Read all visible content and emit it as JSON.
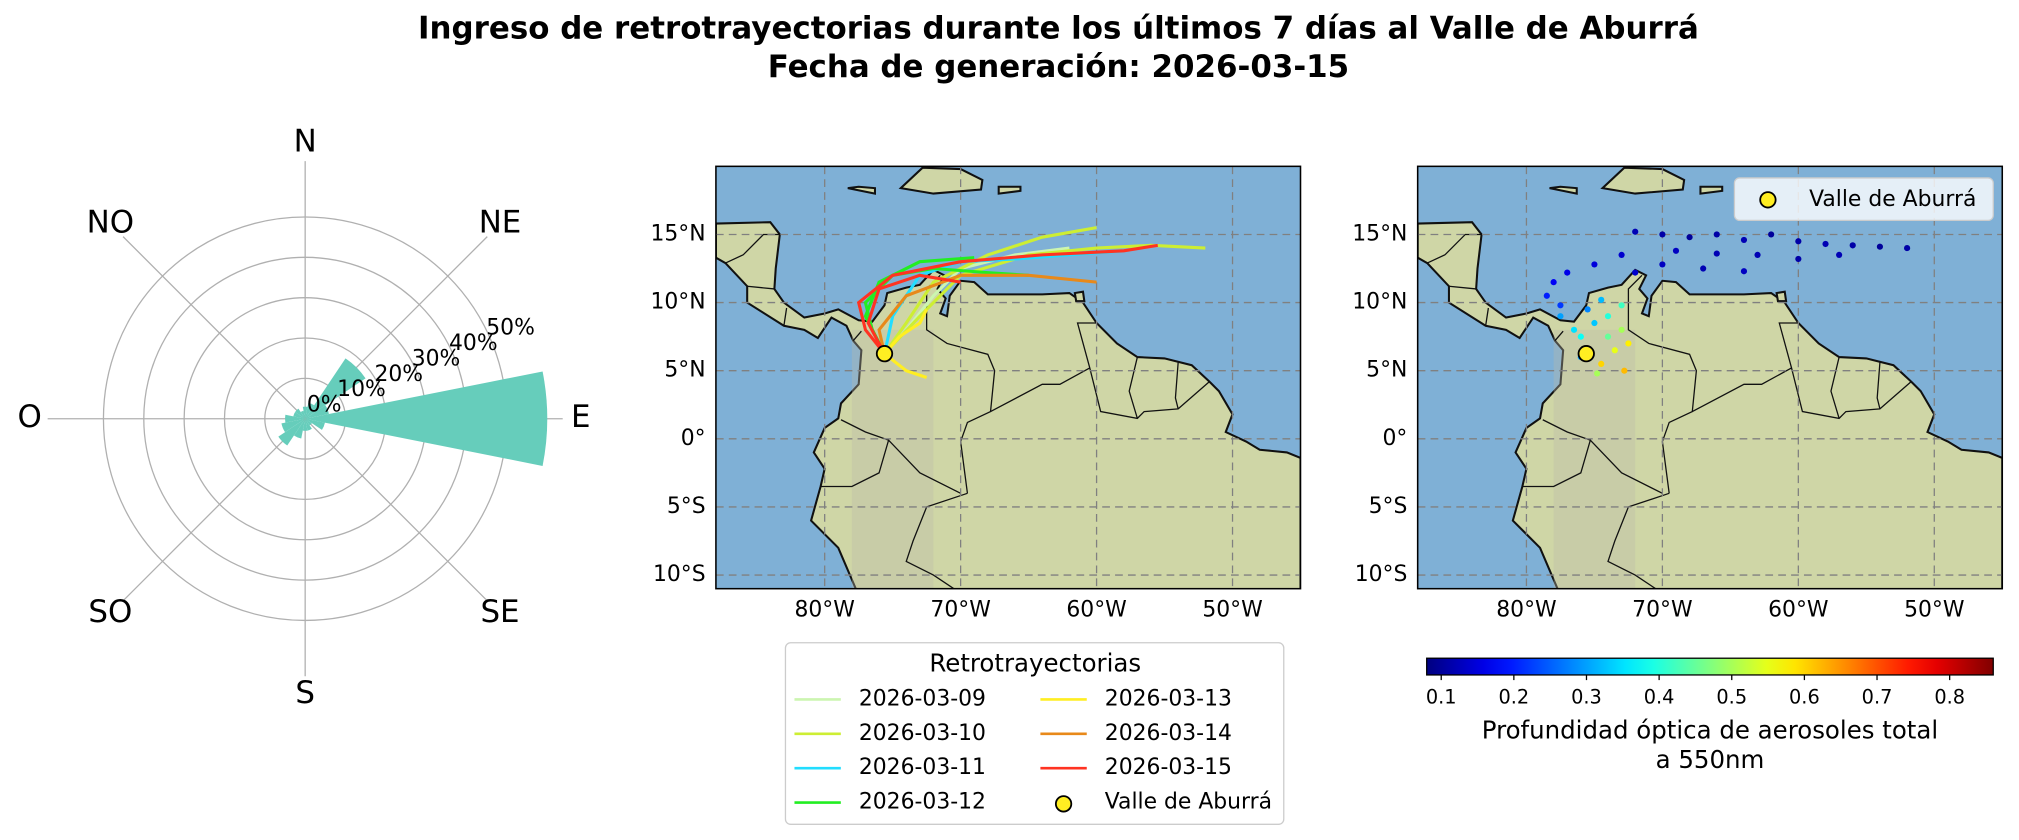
{
  "title": "Ingreso de retrotrayectorias durante los últimos 7 días al Valle de Aburrá",
  "subtitle": "Fecha de generación: 2026-03-15",
  "chart_data": [
    {
      "type": "rose",
      "directions": [
        "N",
        "NE",
        "E",
        "SE",
        "S",
        "SO",
        "O",
        "NO"
      ],
      "x": [
        0,
        22.5,
        45,
        67.5,
        90,
        112.5,
        135,
        157.5,
        180,
        202.5,
        225,
        247.5,
        270,
        292.5,
        315,
        337.5
      ],
      "values": [
        3,
        4,
        18,
        6,
        60,
        5,
        2,
        3,
        3,
        5,
        8,
        6,
        5,
        3,
        3,
        2
      ],
      "color": "#66cdbb",
      "rlim": [
        0,
        60
      ],
      "rticks": [
        {
          "value": 0,
          "label": "0%"
        },
        {
          "value": 10,
          "label": "10%"
        },
        {
          "value": 20,
          "label": "20%"
        },
        {
          "value": 30,
          "label": "30%"
        },
        {
          "value": 40,
          "label": "40%"
        },
        {
          "value": 50,
          "label": "50%"
        }
      ],
      "grid": true
    },
    {
      "type": "trajectory_map",
      "xlim": [
        -88,
        -45
      ],
      "ylim": [
        -11,
        20
      ],
      "xticks": [
        {
          "value": -80,
          "label": "80°W"
        },
        {
          "value": -70,
          "label": "70°W"
        },
        {
          "value": -60,
          "label": "60°W"
        },
        {
          "value": -50,
          "label": "50°W"
        }
      ],
      "yticks": [
        {
          "value": 15,
          "label": "15°N"
        },
        {
          "value": 10,
          "label": "10°N"
        },
        {
          "value": 5,
          "label": "5°N"
        },
        {
          "value": 0,
          "label": "0°"
        },
        {
          "value": -5,
          "label": "5°S"
        },
        {
          "value": -10,
          "label": "10°S"
        }
      ],
      "grid": true,
      "legend": {
        "title": "Retrotrayectorias",
        "loc": "lower center"
      },
      "series": [
        {
          "name": "2026-03-09",
          "color": "#ccf5b0",
          "lines": [
            {
              "lon": [
                -75.6,
                -74,
                -72,
                -70,
                -66,
                -62
              ],
              "lat": [
                6.25,
                8,
                10.5,
                12.5,
                13.5,
                14
              ]
            }
          ]
        },
        {
          "name": "2026-03-10",
          "color": "#cdee33",
          "lines": [
            {
              "lon": [
                -75.6,
                -74,
                -72,
                -68,
                -64,
                -60
              ],
              "lat": [
                6.25,
                8.5,
                11.5,
                13.5,
                14.8,
                15.5
              ]
            },
            {
              "lon": [
                -75.6,
                -73,
                -70,
                -65,
                -60,
                -56,
                -52
              ],
              "lat": [
                6.25,
                9,
                12,
                13.5,
                14,
                14.2,
                14
              ]
            }
          ]
        },
        {
          "name": "2026-03-11",
          "color": "#22ddff",
          "lines": [
            {
              "lon": [
                -75.6,
                -75,
                -73,
                -70,
                -66,
                -62,
                -58
              ],
              "lat": [
                6.25,
                9,
                12,
                13,
                13.2,
                13.5,
                13.8
              ]
            }
          ]
        },
        {
          "name": "2026-03-12",
          "color": "#22ee22",
          "lines": [
            {
              "lon": [
                -75.6,
                -76.5,
                -77,
                -75,
                -72,
                -68,
                -65
              ],
              "lat": [
                6.25,
                8,
                10,
                12,
                12.5,
                12.2,
                12
              ]
            },
            {
              "lon": [
                -75.6,
                -77,
                -76,
                -73,
                -69
              ],
              "lat": [
                6.25,
                9,
                11.5,
                13,
                13.3
              ]
            }
          ]
        },
        {
          "name": "2026-03-13",
          "color": "#ffee22",
          "lines": [
            {
              "lon": [
                -75.6,
                -74.5,
                -73,
                -72.5
              ],
              "lat": [
                6.25,
                7.5,
                8.5,
                9.5
              ]
            },
            {
              "lon": [
                -75.6,
                -74,
                -72.5
              ],
              "lat": [
                6.25,
                5,
                4.5
              ]
            }
          ]
        },
        {
          "name": "2026-03-14",
          "color": "#e8891a",
          "lines": [
            {
              "lon": [
                -75.6,
                -76,
                -74,
                -70,
                -65,
                -60
              ],
              "lat": [
                6.25,
                8,
                10.5,
                12,
                12,
                11.5
              ]
            }
          ]
        },
        {
          "name": "2026-03-15",
          "color": "#ff3322",
          "lines": [
            {
              "lon": [
                -75.6,
                -77,
                -77.5,
                -75,
                -70,
                -64,
                -58,
                -55.5
              ],
              "lat": [
                6.25,
                8,
                10,
                12,
                13,
                13.5,
                13.8,
                14.2
              ]
            },
            {
              "lon": [
                -75.6,
                -76.8,
                -76,
                -73,
                -70
              ],
              "lat": [
                6.25,
                8.5,
                11,
                12,
                11.5
              ]
            }
          ]
        }
      ],
      "point": {
        "name": "Valle de Aburrá",
        "lon": -75.6,
        "lat": 6.25,
        "color": "#ffee22"
      }
    },
    {
      "type": "aod_map",
      "xlim": [
        -88,
        -45
      ],
      "ylim": [
        -11,
        20
      ],
      "xticks": [
        {
          "value": -80,
          "label": "80°W"
        },
        {
          "value": -70,
          "label": "70°W"
        },
        {
          "value": -60,
          "label": "60°W"
        },
        {
          "value": -50,
          "label": "50°W"
        }
      ],
      "yticks": [
        {
          "value": 15,
          "label": "15°N"
        },
        {
          "value": 10,
          "label": "10°N"
        },
        {
          "value": 5,
          "label": "5°N"
        },
        {
          "value": 0,
          "label": "0°"
        },
        {
          "value": -5,
          "label": "5°S"
        },
        {
          "value": -10,
          "label": "10°S"
        }
      ],
      "grid": true,
      "legend": "upper right",
      "points": {
        "lon": [
          -72,
          -70,
          -68,
          -66,
          -64,
          -62,
          -60,
          -58,
          -56,
          -54,
          -52,
          -69,
          -66,
          -63,
          -60,
          -57,
          -73,
          -75,
          -77,
          -78,
          -78.5,
          -77.5,
          -70,
          -67,
          -64,
          -72,
          -77.5,
          -76.5,
          -75.5,
          -74.5,
          -74,
          -76,
          -75,
          -74,
          -73,
          -73.5,
          -74.5,
          -72.5,
          -73,
          -72.8,
          -74.8,
          -76
        ],
        "lat": [
          15.2,
          15,
          14.8,
          15,
          14.6,
          15,
          14.5,
          14.3,
          14.2,
          14.1,
          14,
          13.8,
          13.6,
          13.5,
          13.2,
          13.5,
          13.5,
          12.8,
          12.2,
          11.5,
          10.5,
          9.8,
          12.8,
          12.5,
          12.3,
          12.2,
          9,
          8,
          9.5,
          10.2,
          9,
          7.5,
          8.5,
          7.5,
          8,
          6.5,
          5.5,
          7,
          9.8,
          5,
          4.8,
          6
        ],
        "values": [
          0.12,
          0.11,
          0.1,
          0.11,
          0.12,
          0.1,
          0.11,
          0.12,
          0.11,
          0.1,
          0.11,
          0.13,
          0.12,
          0.12,
          0.11,
          0.12,
          0.14,
          0.15,
          0.16,
          0.17,
          0.2,
          0.22,
          0.13,
          0.12,
          0.13,
          0.14,
          0.3,
          0.35,
          0.28,
          0.32,
          0.4,
          0.38,
          0.33,
          0.45,
          0.5,
          0.55,
          0.6,
          0.58,
          0.42,
          0.62,
          0.5,
          0.3
        ]
      },
      "colormap": "jet",
      "clim": [
        0.08,
        0.86
      ],
      "cticks": [
        0.1,
        0.2,
        0.3,
        0.4,
        0.5,
        0.6,
        0.7,
        0.8
      ],
      "colorbar_label": [
        "Profundidad óptica de aerosoles total",
        "a 550nm"
      ],
      "point": {
        "name": "Valle de Aburrá",
        "lon": -75.6,
        "lat": 6.25,
        "color": "#ffee22"
      }
    }
  ]
}
